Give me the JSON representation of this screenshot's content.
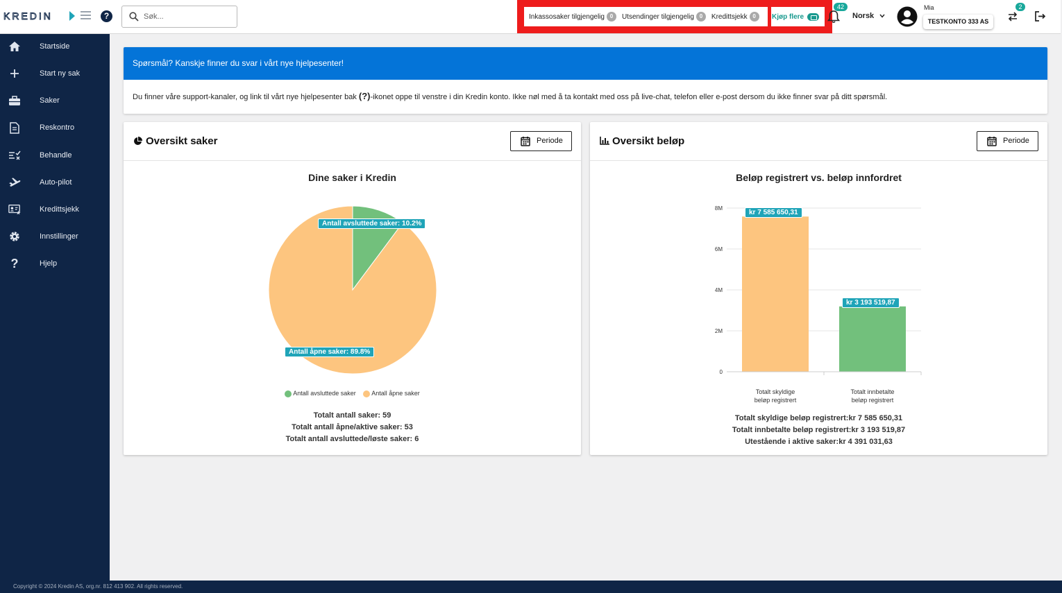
{
  "brand": {
    "logo_text": "KREDIN",
    "help_glyph": "?"
  },
  "search": {
    "placeholder": "Søk..."
  },
  "credits": {
    "items": [
      {
        "label": "Inkassosaker tilgjengelig",
        "count": "0"
      },
      {
        "label": "Utsendinger tilgjengelig",
        "count": "0"
      },
      {
        "label": "Kredittsjekk",
        "count": "0"
      }
    ],
    "buy_label": "Kjøp flere"
  },
  "notifications": {
    "count": "42"
  },
  "language": {
    "selected": "Norsk"
  },
  "user": {
    "name": "Mia",
    "account": "TESTKONTO 333 AS"
  },
  "switch": {
    "count": "2"
  },
  "sidebar": {
    "items": [
      {
        "label": "Startside",
        "icon": "home-icon"
      },
      {
        "label": "Start ny sak",
        "icon": "plus-icon"
      },
      {
        "label": "Saker",
        "icon": "briefcase-icon"
      },
      {
        "label": "Reskontro",
        "icon": "document-icon"
      },
      {
        "label": "Behandle",
        "icon": "checklist-icon"
      },
      {
        "label": "Auto-pilot",
        "icon": "airplane-icon"
      },
      {
        "label": "Kredittsjekk",
        "icon": "id-card-icon"
      },
      {
        "label": "Innstillinger",
        "icon": "gear-icon"
      },
      {
        "label": "Hjelp",
        "icon": "question-icon"
      }
    ]
  },
  "info": {
    "heading": "Spørsmål? Kanskje finner du svar i vårt nye hjelpesenter!",
    "text_before": "Du finner våre support-kanaler, og link til vårt nye hjelpesenter bak ",
    "text_icon": "(?)",
    "text_after": "-ikonet oppe til venstre i din Kredin konto. Ikke nøl med å ta kontakt med oss på live-chat, telefon eller e-post dersom du ikke finner svar på ditt spørsmål."
  },
  "panels": {
    "cases": {
      "title": "Oversikt saker",
      "period_label": "Periode",
      "summary": [
        "Totalt antall saker: 59",
        "Totalt antall åpne/aktive saker: 53",
        "Totalt antall avsluttede/løste saker: 6"
      ]
    },
    "amounts": {
      "title": "Oversikt beløp",
      "period_label": "Periode",
      "summary": [
        "Totalt skyldige beløp registrert:kr 7 585 650,31",
        "Totalt innbetalte beløp registrert:kr 3 193 519,87",
        "Utestående i aktive saker:kr 4 391 031,63"
      ]
    }
  },
  "chart_data": [
    {
      "type": "pie",
      "title": "Dine saker i Kredin",
      "slices": [
        {
          "label": "Antall avsluttede saker",
          "value": 10.2,
          "display": "Antall avsluttede saker: 10.2%",
          "color": "#72c07c"
        },
        {
          "label": "Antall åpne saker",
          "value": 89.8,
          "display": "Antall åpne saker: 89.8%",
          "color": "#fdc57f"
        }
      ],
      "legend_position": "bottom"
    },
    {
      "type": "bar",
      "title": "Beløp registrert vs. beløp innfordret",
      "categories": [
        "Totalt skyldige beløp registrert",
        "Totalt innbetalte beløp registrert"
      ],
      "category_lines": [
        [
          "Totalt skyldige",
          "beløp registrert"
        ],
        [
          "Totalt innbetalte",
          "beløp registrert"
        ]
      ],
      "values": [
        7585650.31,
        3193519.87
      ],
      "value_labels": [
        "kr 7 585 650,31",
        "kr 3 193 519,87"
      ],
      "colors": [
        "#fdc57f",
        "#72c07c"
      ],
      "ylim": [
        0,
        8000000
      ],
      "yticks": [
        0,
        2000000,
        4000000,
        6000000,
        8000000
      ],
      "ytick_labels": [
        "0",
        "2M",
        "4M",
        "6M",
        "8M"
      ],
      "grid": true
    }
  ]
}
